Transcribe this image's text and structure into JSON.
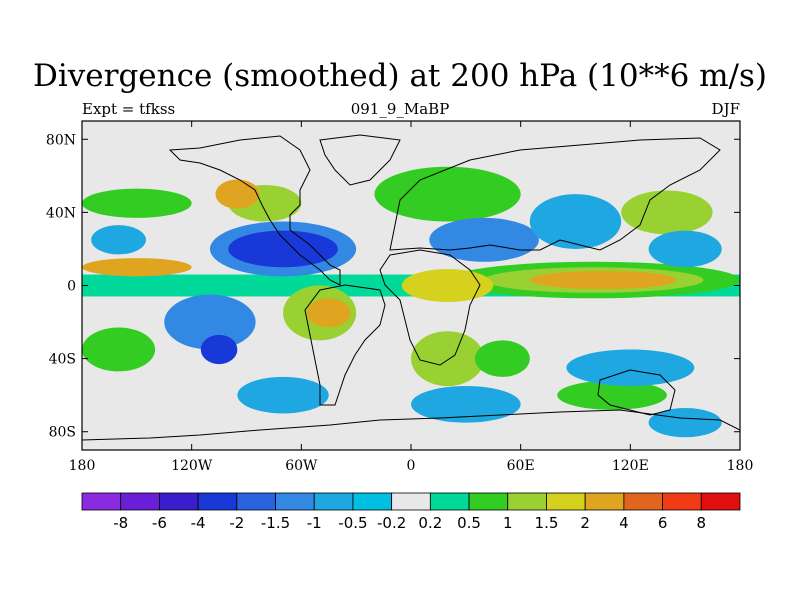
{
  "chart_data": {
    "type": "heatmap",
    "title": "Divergence (smoothed) at 200 hPa (10**6 m/s)",
    "left_string": "Expt = tfkss",
    "center_string": "091_9_MaBP",
    "right_string": "DJF",
    "x_ticks": [
      "180",
      "120W",
      "60W",
      "0",
      "60E",
      "120E",
      "180"
    ],
    "y_ticks": [
      "80N",
      "40N",
      "0",
      "40S",
      "80S"
    ],
    "xlim": [
      -180,
      180
    ],
    "ylim": [
      -90,
      90
    ],
    "levels": [
      "-8",
      "-6",
      "-4",
      "-2",
      "-1.5",
      "-1",
      "-0.5",
      "-0.2",
      "0.2",
      "0.5",
      "1",
      "1.5",
      "2",
      "4",
      "6",
      "8"
    ],
    "colors": [
      "#8a2be2",
      "#6a1fd8",
      "#3a1ecc",
      "#1838d8",
      "#2a63e0",
      "#3388e4",
      "#1ea7e0",
      "#00bfe0",
      "#e8e8e8",
      "#00d99a",
      "#33cc22",
      "#99d133",
      "#d6d11e",
      "#e0a520",
      "#e06620",
      "#f03b14",
      "#e01010"
    ],
    "regions": [
      {
        "shape": "rect",
        "x": [
          -180,
          180
        ],
        "y": [
          -85,
          90
        ],
        "level": 8
      },
      {
        "shape": "band",
        "x": [
          -180,
          180
        ],
        "y": [
          -6,
          6
        ],
        "level": 9
      },
      {
        "shape": "ellipse",
        "cx": 100,
        "cy": 3,
        "rx": 80,
        "ry": 10,
        "level": 10
      },
      {
        "shape": "ellipse",
        "cx": 100,
        "cy": 3,
        "rx": 60,
        "ry": 7,
        "level": 11
      },
      {
        "shape": "ellipse",
        "cx": 105,
        "cy": 3,
        "rx": 40,
        "ry": 5,
        "level": 13
      },
      {
        "shape": "ellipse",
        "cx": 20,
        "cy": 0,
        "rx": 25,
        "ry": 9,
        "level": 12
      },
      {
        "shape": "ellipse",
        "cx": -50,
        "cy": -15,
        "rx": 20,
        "ry": 15,
        "level": 11
      },
      {
        "shape": "ellipse",
        "cx": -45,
        "cy": -15,
        "rx": 12,
        "ry": 8,
        "level": 13
      },
      {
        "shape": "ellipse",
        "cx": -150,
        "cy": 10,
        "rx": 30,
        "ry": 5,
        "level": 13
      },
      {
        "shape": "ellipse",
        "cx": -80,
        "cy": 45,
        "rx": 20,
        "ry": 10,
        "level": 11
      },
      {
        "shape": "ellipse",
        "cx": -95,
        "cy": 50,
        "rx": 12,
        "ry": 8,
        "level": 13
      },
      {
        "shape": "ellipse",
        "cx": 140,
        "cy": 40,
        "rx": 25,
        "ry": 12,
        "level": 11
      },
      {
        "shape": "ellipse",
        "cx": -150,
        "cy": 45,
        "rx": 30,
        "ry": 8,
        "level": 10
      },
      {
        "shape": "ellipse",
        "cx": 20,
        "cy": 50,
        "rx": 40,
        "ry": 15,
        "level": 10
      },
      {
        "shape": "ellipse",
        "cx": 20,
        "cy": -40,
        "rx": 20,
        "ry": 15,
        "level": 11
      },
      {
        "shape": "ellipse",
        "cx": 50,
        "cy": -40,
        "rx": 15,
        "ry": 10,
        "level": 10
      },
      {
        "shape": "ellipse",
        "cx": 110,
        "cy": -60,
        "rx": 30,
        "ry": 8,
        "level": 10
      },
      {
        "shape": "ellipse",
        "cx": -160,
        "cy": -35,
        "rx": 20,
        "ry": 12,
        "level": 10
      },
      {
        "shape": "ellipse",
        "cx": -70,
        "cy": 20,
        "rx": 40,
        "ry": 15,
        "level": 5
      },
      {
        "shape": "ellipse",
        "cx": -70,
        "cy": 20,
        "rx": 30,
        "ry": 10,
        "level": 3
      },
      {
        "shape": "ellipse",
        "cx": 40,
        "cy": 25,
        "rx": 30,
        "ry": 12,
        "level": 5
      },
      {
        "shape": "ellipse",
        "cx": -110,
        "cy": -20,
        "rx": 25,
        "ry": 15,
        "level": 5
      },
      {
        "shape": "ellipse",
        "cx": -105,
        "cy": -35,
        "rx": 10,
        "ry": 8,
        "level": 3
      },
      {
        "shape": "ellipse",
        "cx": 90,
        "cy": 35,
        "rx": 25,
        "ry": 15,
        "level": 6
      },
      {
        "shape": "ellipse",
        "cx": 150,
        "cy": 20,
        "rx": 20,
        "ry": 10,
        "level": 6
      },
      {
        "shape": "ellipse",
        "cx": -160,
        "cy": 25,
        "rx": 15,
        "ry": 8,
        "level": 6
      },
      {
        "shape": "ellipse",
        "cx": 30,
        "cy": -65,
        "rx": 30,
        "ry": 10,
        "level": 6
      },
      {
        "shape": "ellipse",
        "cx": -70,
        "cy": -60,
        "rx": 25,
        "ry": 10,
        "level": 6
      },
      {
        "shape": "ellipse",
        "cx": 120,
        "cy": -45,
        "rx": 35,
        "ry": 10,
        "level": 6
      },
      {
        "shape": "ellipse",
        "cx": 150,
        "cy": -75,
        "rx": 20,
        "ry": 8,
        "level": 6
      }
    ]
  }
}
